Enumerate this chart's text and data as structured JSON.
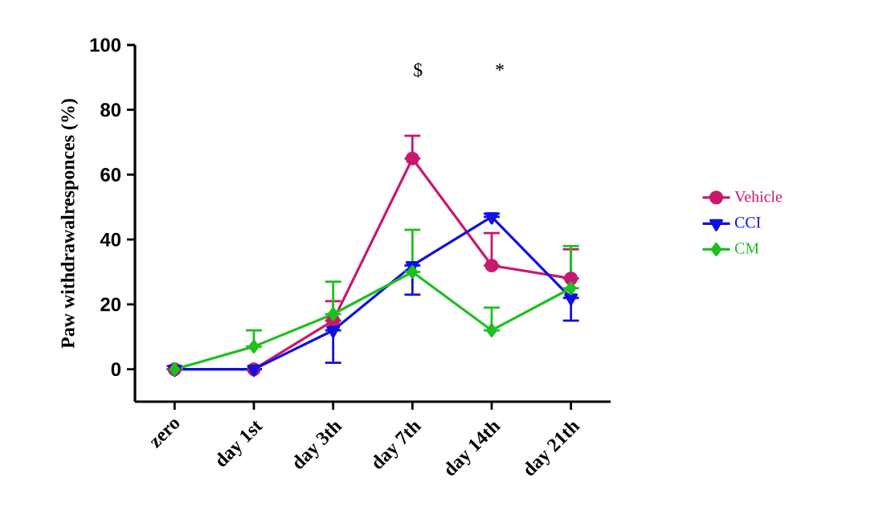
{
  "chart_data": {
    "type": "line",
    "ylabel": "Paw withdrawalresponces (%)",
    "categories": [
      "zero",
      "day 1st",
      "day 3th",
      "day 7th",
      "day 14th",
      "day 21th"
    ],
    "ylim": [
      -10,
      100
    ],
    "yticks": [
      0,
      20,
      40,
      60,
      80,
      100
    ],
    "grid": false,
    "legend": "right",
    "line_style": "solid",
    "series": [
      {
        "name": "Vehicle",
        "color": "#c8186e",
        "marker": "circle",
        "values": [
          0,
          0,
          15,
          65,
          32,
          28
        ],
        "errors": [
          [
            0,
            1
          ],
          null,
          [
            15,
            21
          ],
          [
            65,
            72
          ],
          [
            32,
            42
          ],
          [
            28,
            37
          ]
        ]
      },
      {
        "name": "CCI",
        "color": "#1010e0",
        "marker": "triangle",
        "values": [
          0,
          0,
          12,
          32,
          47,
          22
        ],
        "errors": [
          null,
          null,
          [
            2,
            12
          ],
          [
            23,
            32
          ],
          [
            47,
            48
          ],
          [
            15,
            22
          ]
        ]
      },
      {
        "name": "CM",
        "color": "#1fbf1f",
        "marker": "diamond",
        "values": [
          0,
          7,
          17,
          30,
          12,
          25
        ],
        "errors": [
          null,
          [
            7,
            12
          ],
          [
            17,
            27
          ],
          [
            30,
            43
          ],
          [
            12,
            19
          ],
          [
            25,
            38
          ]
        ]
      }
    ],
    "annotations": [
      "$",
      "*"
    ]
  }
}
